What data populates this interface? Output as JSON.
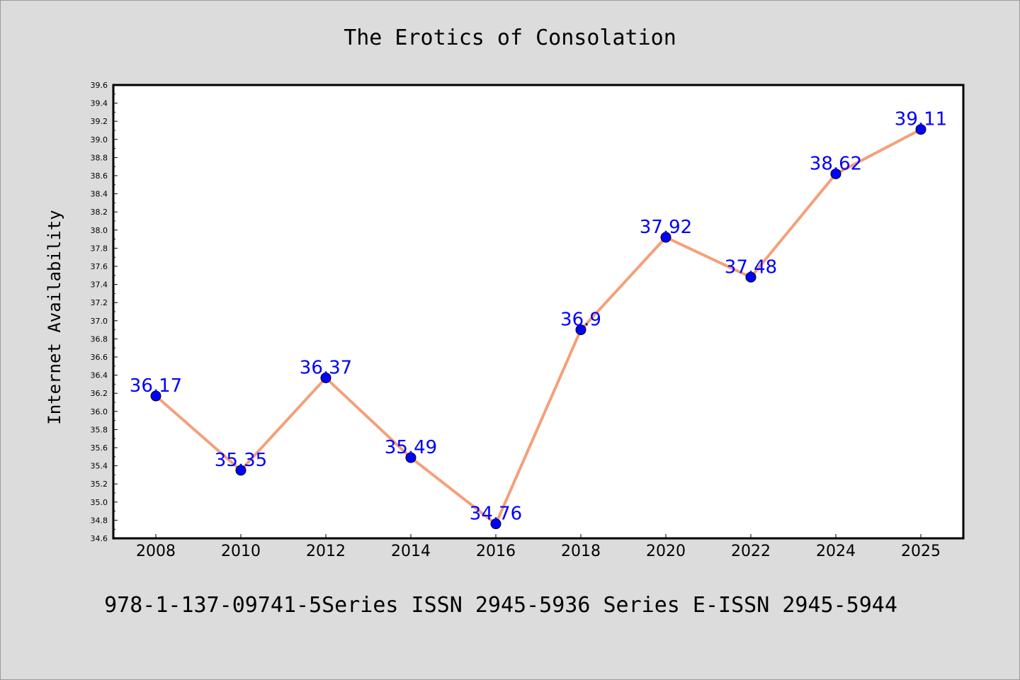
{
  "chart_data": {
    "type": "line",
    "title": "The Erotics of Consolation",
    "xlabel": "",
    "ylabel": "Internet Availability",
    "categories": [
      "2008",
      "2010",
      "2012",
      "2014",
      "2016",
      "2018",
      "2020",
      "2022",
      "2024",
      "2025"
    ],
    "series": [
      {
        "values": [
          36.17,
          35.35,
          36.37,
          35.49,
          34.76,
          36.9,
          37.92,
          37.48,
          38.62,
          39.11
        ],
        "data_labels": [
          "36.17",
          "35.35",
          "36.37",
          "35.49",
          "34.76",
          "36.9",
          "37.92",
          "37.48",
          "38.62",
          "39.11"
        ]
      }
    ],
    "ylim": [
      34.6,
      39.6
    ],
    "yticks": [
      "34.6",
      "34.8",
      "35.0",
      "35.2",
      "35.4",
      "35.6",
      "35.8",
      "36.0",
      "36.2",
      "36.4",
      "36.6",
      "36.8",
      "37.0",
      "37.2",
      "37.4",
      "37.6",
      "37.8",
      "38.0",
      "38.2",
      "38.4",
      "38.6",
      "38.8",
      "39.0",
      "39.2",
      "39.4",
      "39.6"
    ],
    "grid": false,
    "legend": "none",
    "colors": {
      "line": "#f4a07a",
      "marker": "#0000ff",
      "labels": "#0000ff",
      "background": "#dcdcdc",
      "plot_background": "#ffffff"
    }
  },
  "footer": "978-1-137-09741-5Series ISSN 2945-5936 Series E-ISSN 2945-5944"
}
